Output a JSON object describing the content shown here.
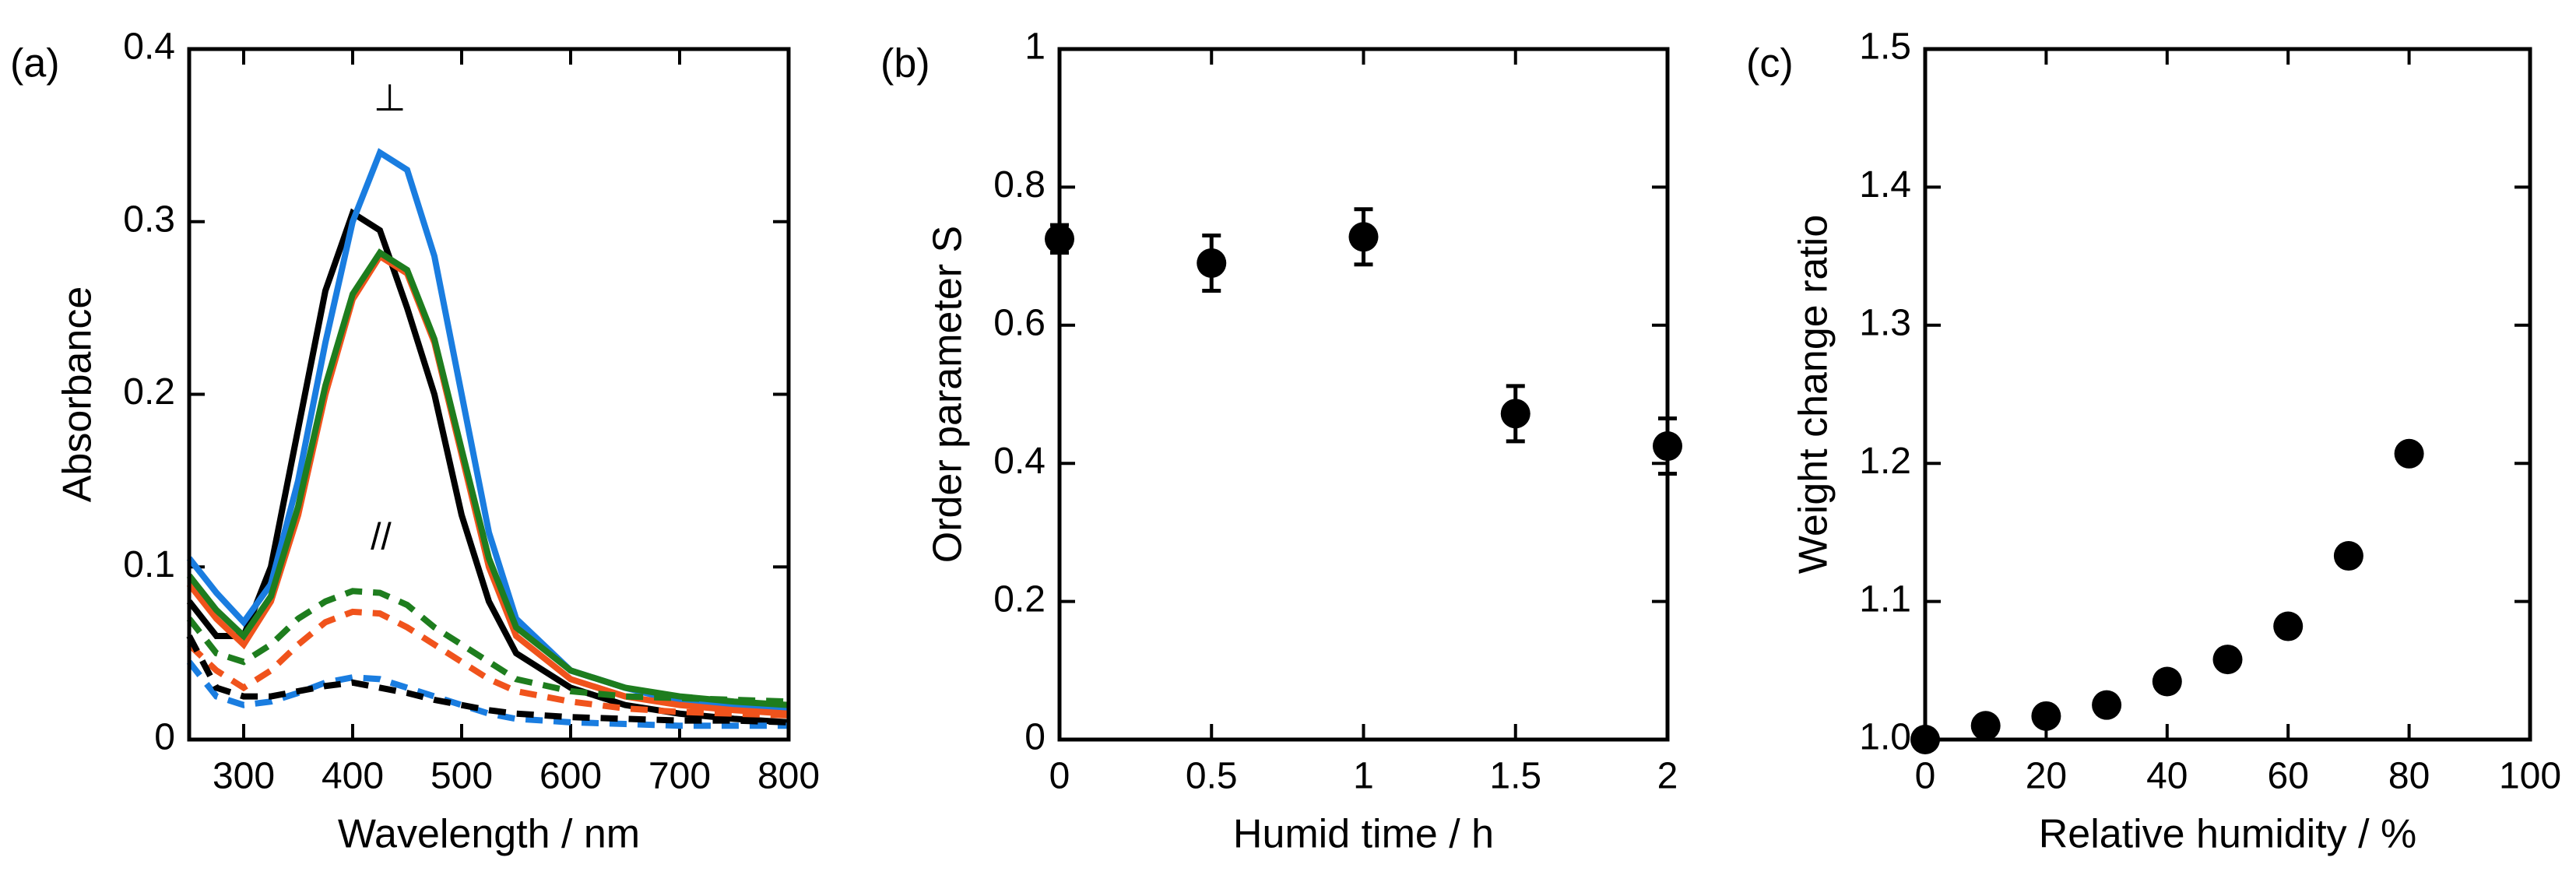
{
  "chart_data": [
    {
      "type": "line",
      "label": "(a)",
      "x_label": "Wavelength / nm",
      "y_label": "Absorbance",
      "annotations": [
        "⊥",
        "//"
      ],
      "x": [
        250,
        275,
        300,
        325,
        350,
        375,
        400,
        425,
        450,
        475,
        500,
        525,
        550,
        600,
        650,
        700,
        750,
        800
      ],
      "xlim": [
        250,
        800
      ],
      "xticks": [
        300,
        400,
        500,
        600,
        700,
        800
      ],
      "ylim": [
        0,
        0.4
      ],
      "yticks": [
        0,
        0.1,
        0.2,
        0.3,
        0.4
      ],
      "series": [
        {
          "color": "#000000",
          "dash": false,
          "values": [
            0.08,
            0.06,
            0.06,
            0.1,
            0.18,
            0.26,
            0.305,
            0.295,
            0.25,
            0.2,
            0.13,
            0.08,
            0.05,
            0.03,
            0.02,
            0.015,
            0.012,
            0.01
          ]
        },
        {
          "color": "#1a7de0",
          "dash": false,
          "values": [
            0.105,
            0.085,
            0.068,
            0.09,
            0.15,
            0.23,
            0.3,
            0.34,
            0.33,
            0.28,
            0.2,
            0.12,
            0.07,
            0.04,
            0.03,
            0.022,
            0.02,
            0.018
          ]
        },
        {
          "color": "#f0531c",
          "dash": false,
          "values": [
            0.09,
            0.07,
            0.055,
            0.08,
            0.13,
            0.2,
            0.255,
            0.28,
            0.27,
            0.23,
            0.165,
            0.1,
            0.06,
            0.035,
            0.025,
            0.02,
            0.017,
            0.015
          ]
        },
        {
          "color": "#1e7d1e",
          "dash": false,
          "values": [
            0.095,
            0.075,
            0.06,
            0.083,
            0.135,
            0.205,
            0.258,
            0.282,
            0.272,
            0.232,
            0.168,
            0.105,
            0.065,
            0.04,
            0.03,
            0.025,
            0.022,
            0.02
          ]
        },
        {
          "color": "#1e7d1e",
          "dash": true,
          "values": [
            0.07,
            0.05,
            0.045,
            0.055,
            0.07,
            0.08,
            0.086,
            0.085,
            0.078,
            0.065,
            0.055,
            0.045,
            0.035,
            0.028,
            0.025,
            0.024,
            0.023,
            0.022
          ]
        },
        {
          "color": "#f0531c",
          "dash": true,
          "values": [
            0.055,
            0.04,
            0.03,
            0.04,
            0.055,
            0.068,
            0.074,
            0.073,
            0.065,
            0.055,
            0.045,
            0.035,
            0.028,
            0.022,
            0.018,
            0.016,
            0.015,
            0.014
          ]
        },
        {
          "color": "#1a7de0",
          "dash": true,
          "values": [
            0.045,
            0.025,
            0.02,
            0.022,
            0.027,
            0.033,
            0.036,
            0.035,
            0.03,
            0.025,
            0.02,
            0.015,
            0.012,
            0.01,
            0.009,
            0.008,
            0.008,
            0.008
          ]
        },
        {
          "color": "#000000",
          "dash": true,
          "values": [
            0.06,
            0.03,
            0.025,
            0.025,
            0.028,
            0.031,
            0.033,
            0.03,
            0.027,
            0.023,
            0.02,
            0.017,
            0.015,
            0.013,
            0.012,
            0.011,
            0.011,
            0.01
          ]
        }
      ]
    },
    {
      "type": "scatter",
      "label": "(b)",
      "x_label": "Humid time / h",
      "y_label": "Order parameter S",
      "x": [
        0,
        0.5,
        1,
        1.5,
        2
      ],
      "values": [
        0.725,
        0.69,
        0.728,
        0.472,
        0.425
      ],
      "errors": [
        0.02,
        0.04,
        0.04,
        0.04,
        0.04
      ],
      "color": "#000000",
      "xlim": [
        0,
        2
      ],
      "xticks": [
        0,
        0.5,
        1,
        1.5,
        2
      ],
      "ylim": [
        0,
        1
      ],
      "yticks": [
        0,
        0.2,
        0.4,
        0.6,
        0.8,
        1
      ]
    },
    {
      "type": "scatter",
      "label": "(c)",
      "x_label": "Relative humidity / %",
      "y_label": "Weight change ratio",
      "x": [
        0,
        10,
        20,
        30,
        40,
        50,
        60,
        70,
        80
      ],
      "values": [
        1.0,
        1.01,
        1.017,
        1.025,
        1.042,
        1.058,
        1.082,
        1.133,
        1.207
      ],
      "color": "#000000",
      "xlim": [
        0,
        100
      ],
      "xticks": [
        0,
        20,
        40,
        60,
        80,
        100
      ],
      "ylim": [
        1,
        1.5
      ],
      "yticks": [
        {
          "value": 1,
          "label": "1.0"
        },
        1.1,
        1.2,
        1.3,
        1.4,
        1.5
      ]
    }
  ]
}
